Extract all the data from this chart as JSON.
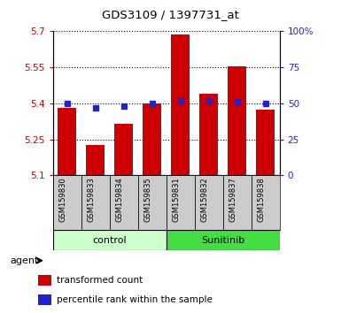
{
  "title": "GDS3109 / 1397731_at",
  "samples": [
    "GSM159830",
    "GSM159833",
    "GSM159834",
    "GSM159835",
    "GSM159831",
    "GSM159832",
    "GSM159837",
    "GSM159838"
  ],
  "bar_values": [
    5.38,
    5.225,
    5.315,
    5.4,
    5.685,
    5.44,
    5.555,
    5.375
  ],
  "percentile_values": [
    50,
    47,
    48,
    50,
    52,
    52,
    51,
    50
  ],
  "y_min": 5.1,
  "y_max": 5.7,
  "y_ticks": [
    5.1,
    5.25,
    5.4,
    5.55,
    5.7
  ],
  "y_tick_labels": [
    "5.1",
    "5.25",
    "5.4",
    "5.55",
    "5.7"
  ],
  "y2_ticks": [
    0,
    25,
    50,
    75,
    100
  ],
  "y2_tick_labels": [
    "0",
    "25",
    "50",
    "75",
    "100%"
  ],
  "bar_color": "#cc0000",
  "dot_color": "#2222cc",
  "bar_width": 0.65,
  "groups": [
    {
      "label": "control",
      "start": 0,
      "end": 4,
      "color": "#ccffcc"
    },
    {
      "label": "Sunitinib",
      "start": 4,
      "end": 8,
      "color": "#44dd44"
    }
  ],
  "legend_items": [
    {
      "color": "#cc0000",
      "label": "transformed count"
    },
    {
      "color": "#2222cc",
      "label": "percentile rank within the sample"
    }
  ],
  "agent_label": "agent",
  "tick_color_left": "#cc0000",
  "tick_color_right": "#2222cc",
  "sample_box_color": "#cccccc",
  "background_color": "#ffffff"
}
